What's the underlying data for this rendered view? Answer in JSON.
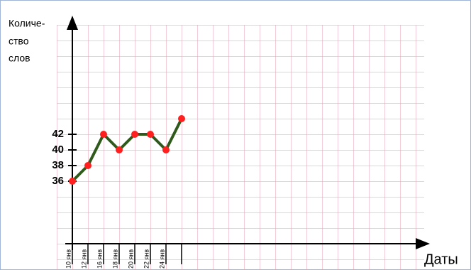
{
  "chart_data": {
    "type": "line",
    "y_label_lines": [
      "Количе-",
      "ство",
      "слов"
    ],
    "x_label": "Даты",
    "categories": [
      "10 янв",
      "12 янв",
      "16 янв",
      "18 янв",
      "20 янв",
      "22 янв",
      "24 янв",
      null
    ],
    "series": [
      {
        "name": "Количество слов",
        "color": "#2f5a1c",
        "marker_color": "#ff1f1f",
        "values": [
          36,
          38,
          42,
          40,
          42,
          42,
          40,
          44
        ]
      }
    ],
    "ylim": [
      28,
      56
    ],
    "yticks": [
      36,
      38,
      40,
      42
    ]
  }
}
